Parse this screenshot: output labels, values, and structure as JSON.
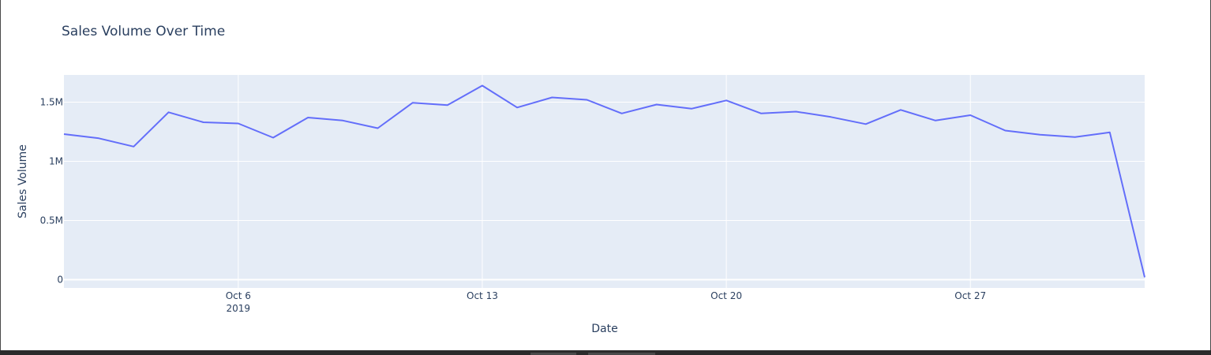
{
  "chart_data": {
    "type": "line",
    "title": "Sales Volume Over Time",
    "xlabel": "Date",
    "ylabel": "Sales Volume",
    "x": [
      "2019-10-01",
      "2019-10-02",
      "2019-10-03",
      "2019-10-04",
      "2019-10-05",
      "2019-10-06",
      "2019-10-07",
      "2019-10-08",
      "2019-10-09",
      "2019-10-10",
      "2019-10-11",
      "2019-10-12",
      "2019-10-13",
      "2019-10-14",
      "2019-10-15",
      "2019-10-16",
      "2019-10-17",
      "2019-10-18",
      "2019-10-19",
      "2019-10-20",
      "2019-10-21",
      "2019-10-22",
      "2019-10-23",
      "2019-10-24",
      "2019-10-25",
      "2019-10-26",
      "2019-10-27",
      "2019-10-28",
      "2019-10-29",
      "2019-10-30",
      "2019-10-31",
      "2019-11-01"
    ],
    "series": [
      {
        "values": [
          1230000,
          1195000,
          1125000,
          1415000,
          1330000,
          1320000,
          1200000,
          1370000,
          1345000,
          1280000,
          1495000,
          1475000,
          1640000,
          1455000,
          1540000,
          1520000,
          1405000,
          1480000,
          1445000,
          1515000,
          1405000,
          1420000,
          1375000,
          1315000,
          1435000,
          1345000,
          1390000,
          1260000,
          1225000,
          1205000,
          1245000,
          20000
        ]
      }
    ],
    "xticks": [
      {
        "date": "2019-10-06",
        "label": "Oct 6",
        "sublabel": "2019"
      },
      {
        "date": "2019-10-13",
        "label": "Oct 13",
        "sublabel": ""
      },
      {
        "date": "2019-10-20",
        "label": "Oct 20",
        "sublabel": ""
      },
      {
        "date": "2019-10-27",
        "label": "Oct 27",
        "sublabel": ""
      }
    ],
    "yticks": [
      {
        "value": 0,
        "label": "0"
      },
      {
        "value": 500000,
        "label": "0.5M"
      },
      {
        "value": 1000000,
        "label": "1M"
      },
      {
        "value": 1500000,
        "label": "1.5M"
      }
    ],
    "ylim": [
      -70000,
      1730000
    ],
    "xlim": [
      "2019-10-01",
      "2019-11-01"
    ],
    "grid": true,
    "colors": {
      "line": "#636efa",
      "plot_bg": "#e5ecf6",
      "grid": "#ffffff",
      "text": "#2a3f5f"
    }
  }
}
